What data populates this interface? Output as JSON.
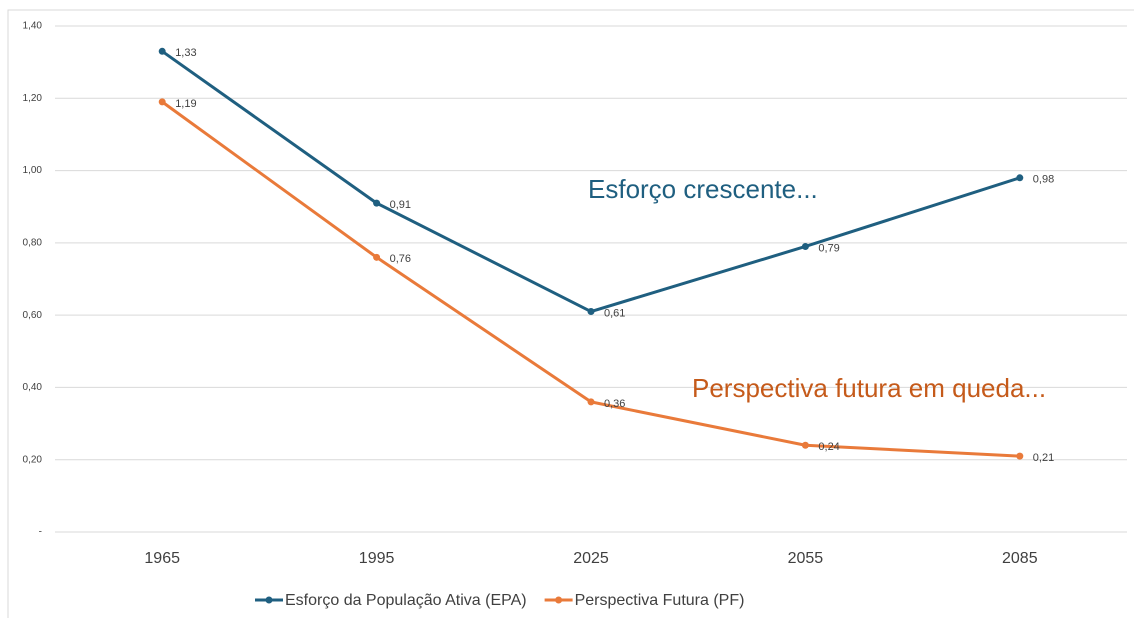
{
  "chart_data": {
    "type": "line",
    "categories": [
      "1965",
      "1995",
      "2025",
      "2055",
      "2085"
    ],
    "series": [
      {
        "name": "Esforço da População Ativa  (EPA)",
        "color": "#1f5f80",
        "values": [
          1.33,
          0.91,
          0.61,
          0.79,
          0.98
        ],
        "value_labels": [
          "1,33",
          "0,91",
          "0,61",
          "0,79",
          "0,98"
        ]
      },
      {
        "name": "Perspectiva Futura (PF)",
        "color": "#e97a3a",
        "values": [
          1.19,
          0.76,
          0.36,
          0.24,
          0.21
        ],
        "value_labels": [
          "1,19",
          "0,76",
          "0,36",
          "0,24",
          "0,21"
        ]
      }
    ],
    "ylim": [
      0,
      1.4
    ],
    "yticks": [
      {
        "value": 0,
        "label": "-"
      },
      {
        "value": 0.2,
        "label": "0,20"
      },
      {
        "value": 0.4,
        "label": "0,40"
      },
      {
        "value": 0.6,
        "label": "0,60"
      },
      {
        "value": 0.8,
        "label": "0,80"
      },
      {
        "value": 1.0,
        "label": "1,00"
      },
      {
        "value": 1.2,
        "label": "1,20"
      },
      {
        "value": 1.4,
        "label": "1,40"
      }
    ],
    "grid": true,
    "legend": "bottom",
    "annotations": [
      {
        "text": "Esforço crescente...",
        "color": "#1f5f80"
      },
      {
        "text": "Perspectiva futura em queda...",
        "color": "#c55a1a"
      }
    ]
  }
}
